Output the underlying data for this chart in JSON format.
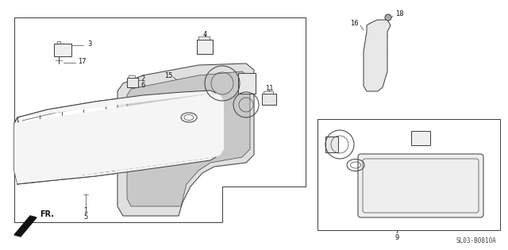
{
  "diagram_code": "SL03-B0810A",
  "bg_color": "#ffffff",
  "line_color": "#444444",
  "label_color": "#111111",
  "label_fs": 6.0
}
